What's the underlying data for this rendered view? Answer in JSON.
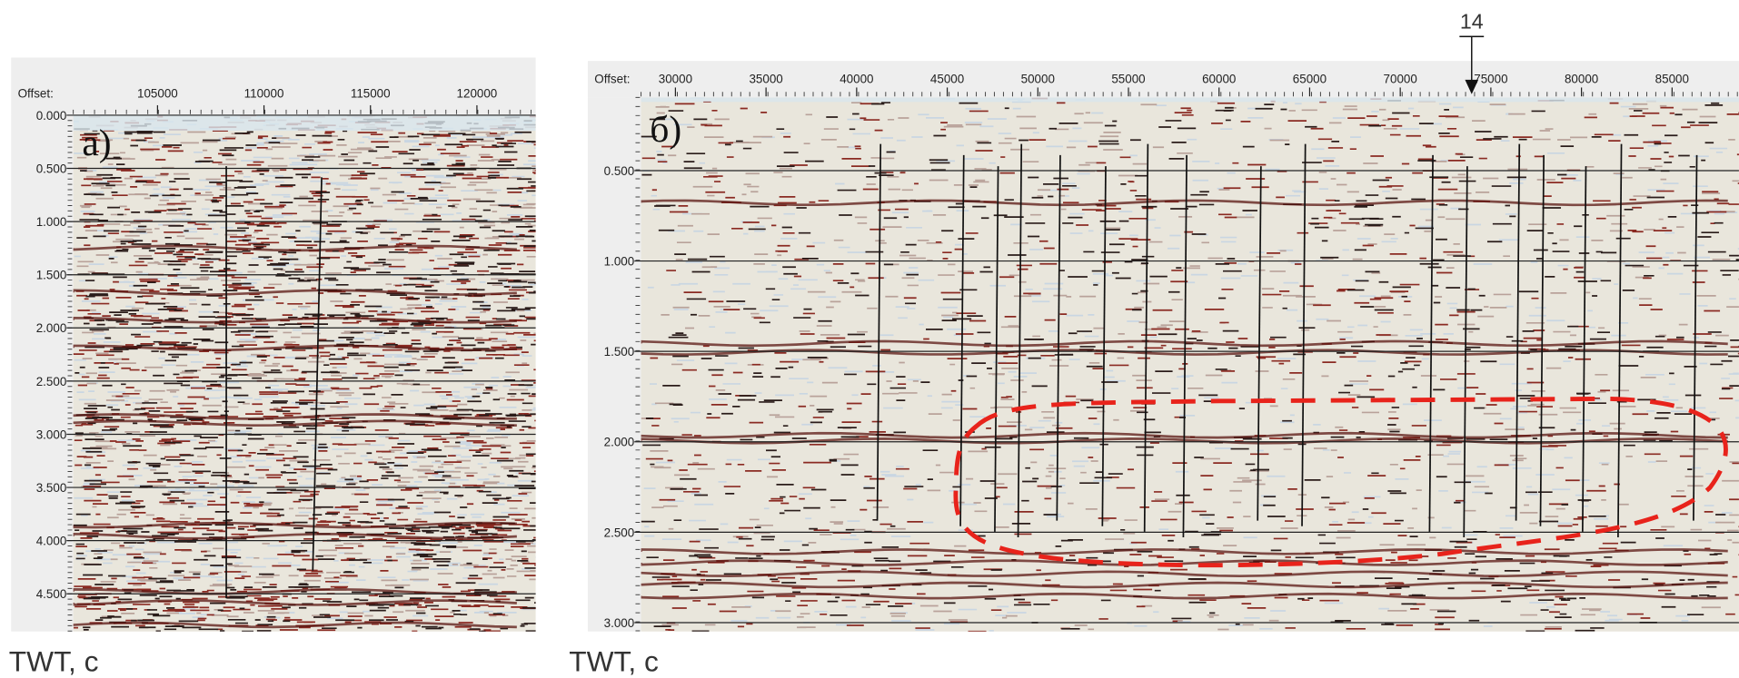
{
  "panels": [
    {
      "label": "а)",
      "offset_label": "Offset:",
      "x_ticks": [
        "105000",
        "110000",
        "115000",
        "120000"
      ],
      "y_ticks": [
        "0.000",
        "0.500",
        "1.000",
        "1.500",
        "2.000",
        "2.500",
        "3.000",
        "3.500",
        "4.000",
        "4.500"
      ],
      "y_axis_label": "TWT, с"
    },
    {
      "label": "б)",
      "offset_label": "Offset:",
      "x_ticks": [
        "30000",
        "35000",
        "40000",
        "45000",
        "50000",
        "55000",
        "60000",
        "65000",
        "70000",
        "75000",
        "80000",
        "85000"
      ],
      "y_ticks": [
        "0.500",
        "1.000",
        "1.500",
        "2.000",
        "2.500",
        "3.000"
      ],
      "y_axis_label": "TWT, с",
      "marker": "14"
    }
  ]
}
